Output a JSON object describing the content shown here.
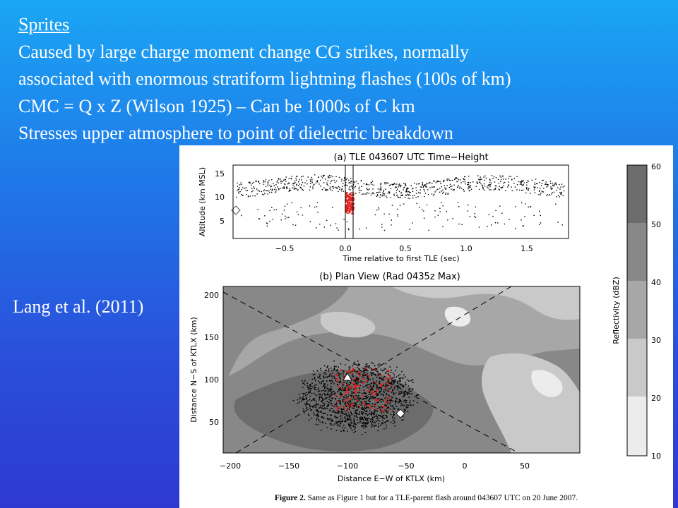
{
  "slide": {
    "heading": "Sprites",
    "lines": [
      "Caused by large charge moment change CG strikes, normally",
      "associated with enormous stratiform lightning flashes (100s of km)",
      "CMC = Q x Z (Wilson 1925) – Can be 1000s of C km",
      "Stresses upper atmosphere to point of dielectric breakdown"
    ],
    "citation": "Lang et al. (2011)"
  },
  "figure": {
    "panel_a": {
      "title": "(a) TLE 043607 UTC Time−Height",
      "ylabel": "Altitude (km MSL)",
      "xlabel": "Time relative to first TLE (sec)",
      "xticks": [
        "−0.5",
        "0.0",
        "0.5",
        "1.0",
        "1.5"
      ],
      "yticks": [
        "5",
        "10",
        "15"
      ]
    },
    "panel_b": {
      "title": "(b) Plan View (Rad 0435z Max)",
      "ylabel": "Distance N−S of KTLX (km)",
      "xlabel": "Distance E−W of KTLX (km)",
      "xticks": [
        "−200",
        "−150",
        "−100",
        "−50",
        "0",
        "50"
      ],
      "yticks": [
        "50",
        "100",
        "150",
        "200"
      ]
    },
    "colorbar": {
      "label": "Reflectivity (dBZ)",
      "ticks": [
        "10",
        "20",
        "30",
        "40",
        "50",
        "60"
      ],
      "colors": [
        "#ececec",
        "#c9c9c9",
        "#a7a7a7",
        "#888888",
        "#6c6c6c"
      ]
    },
    "caption": {
      "label": "Figure 2.",
      "text": "Same as Figure 1 but for a TLE-parent flash around 043607 UTC on 20 June 2007."
    }
  }
}
